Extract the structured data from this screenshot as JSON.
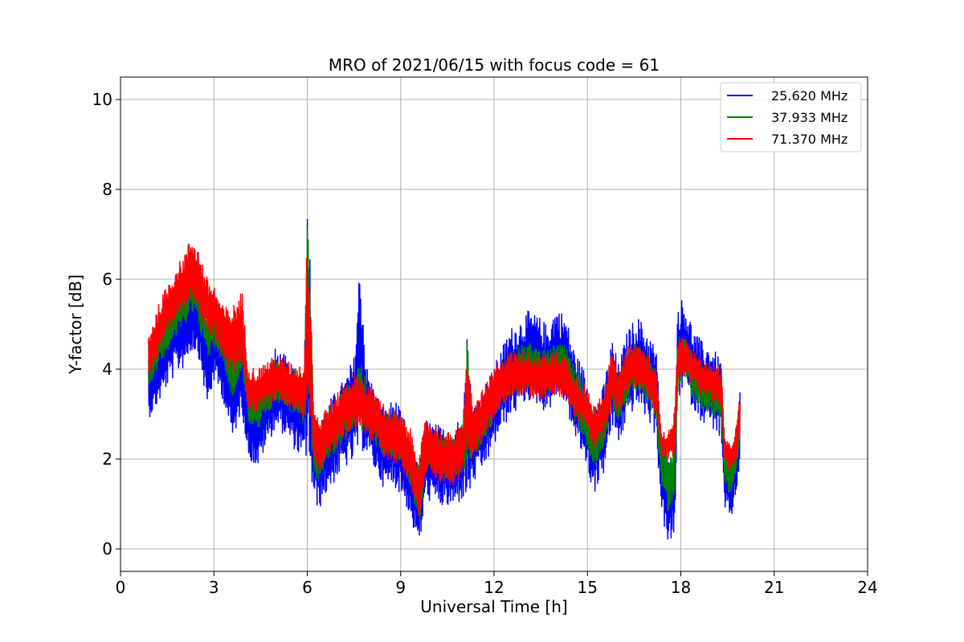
{
  "chart_data": {
    "type": "line",
    "title": "MRO of 2021/06/15 with focus code = 61",
    "xlabel": "Universal Time [h]",
    "ylabel": "Y-factor [dB]",
    "xlim": [
      0,
      24
    ],
    "ylim": [
      -0.5,
      10.5
    ],
    "xticks": [
      0,
      3,
      6,
      9,
      12,
      15,
      18,
      21,
      24
    ],
    "yticks": [
      0,
      2,
      4,
      6,
      8,
      10
    ],
    "grid": true,
    "legend_position": "top-right",
    "series": [
      {
        "name": "25.620 MHz",
        "color": "#0000ff",
        "x": [
          0.9,
          1.2,
          1.5,
          1.8,
          2.0,
          2.3,
          2.5,
          2.8,
          3.0,
          3.3,
          3.6,
          3.9,
          4.1,
          4.4,
          4.7,
          5.0,
          5.3,
          5.6,
          5.9,
          6.0,
          6.1,
          6.2,
          6.4,
          6.6,
          6.9,
          7.2,
          7.5,
          7.7,
          7.9,
          8.2,
          8.5,
          8.8,
          9.1,
          9.3,
          9.5,
          9.6,
          9.8,
          10.1,
          10.4,
          10.7,
          11.0,
          11.15,
          11.3,
          11.6,
          11.9,
          12.2,
          12.5,
          12.8,
          13.1,
          13.4,
          13.7,
          14.0,
          14.3,
          14.6,
          14.9,
          15.2,
          15.5,
          15.8,
          16.0,
          16.3,
          16.6,
          16.9,
          17.2,
          17.4,
          17.6,
          17.8,
          17.9,
          18.1,
          18.4,
          18.7,
          19.0,
          19.3,
          19.4,
          19.6,
          19.8,
          19.9
        ],
        "y": [
          3.5,
          4.0,
          4.5,
          4.9,
          5.0,
          5.4,
          5.2,
          4.0,
          4.6,
          4.2,
          3.2,
          4.0,
          2.9,
          2.6,
          3.2,
          3.6,
          3.4,
          3.1,
          2.9,
          5.0,
          4.0,
          2.0,
          1.8,
          2.2,
          2.5,
          2.8,
          3.1,
          4.4,
          3.1,
          2.6,
          2.2,
          2.4,
          2.0,
          1.6,
          1.2,
          1.0,
          2.0,
          1.9,
          1.8,
          1.8,
          2.1,
          3.0,
          2.3,
          2.6,
          3.0,
          3.5,
          3.9,
          4.1,
          4.3,
          4.2,
          4.0,
          4.4,
          4.2,
          3.4,
          3.0,
          2.2,
          2.6,
          3.7,
          3.2,
          3.9,
          4.2,
          3.9,
          3.5,
          1.6,
          1.0,
          1.4,
          4.4,
          4.6,
          4.0,
          3.7,
          3.6,
          3.3,
          1.6,
          1.4,
          2.0,
          2.8
        ],
        "spread": [
          0.6,
          0.8,
          0.9,
          1.0,
          1.0,
          1.0,
          0.9,
          0.9,
          0.9,
          0.9,
          0.8,
          0.9,
          0.9,
          0.8,
          0.9,
          0.9,
          0.9,
          0.9,
          1.0,
          3.0,
          2.5,
          1.0,
          0.9,
          1.0,
          1.0,
          1.0,
          1.2,
          2.2,
          1.0,
          0.9,
          0.9,
          1.0,
          0.9,
          0.9,
          1.0,
          1.0,
          0.9,
          0.9,
          0.9,
          0.9,
          1.0,
          2.0,
          0.9,
          0.9,
          0.9,
          0.9,
          1.0,
          1.0,
          1.0,
          1.0,
          1.0,
          1.0,
          1.0,
          1.0,
          1.0,
          1.0,
          1.0,
          1.0,
          0.9,
          1.0,
          1.0,
          1.0,
          1.0,
          0.9,
          1.0,
          1.2,
          1.1,
          1.0,
          0.9,
          0.9,
          0.9,
          0.9,
          0.8,
          0.8,
          0.8,
          0.8
        ]
      },
      {
        "name": "37.933 MHz",
        "color": "#008000",
        "x": [
          0.9,
          1.2,
          1.5,
          1.8,
          2.0,
          2.3,
          2.5,
          2.8,
          3.0,
          3.3,
          3.6,
          3.9,
          4.1,
          4.4,
          4.7,
          5.0,
          5.3,
          5.6,
          5.9,
          6.0,
          6.1,
          6.2,
          6.4,
          6.6,
          6.9,
          7.2,
          7.5,
          7.7,
          7.9,
          8.2,
          8.5,
          8.8,
          9.1,
          9.3,
          9.5,
          9.6,
          9.8,
          10.1,
          10.4,
          10.7,
          11.0,
          11.15,
          11.3,
          11.6,
          11.9,
          12.2,
          12.5,
          12.8,
          13.1,
          13.4,
          13.7,
          14.0,
          14.3,
          14.6,
          14.9,
          15.2,
          15.5,
          15.8,
          16.0,
          16.3,
          16.6,
          16.9,
          17.2,
          17.4,
          17.6,
          17.8,
          17.9,
          18.1,
          18.4,
          18.7,
          19.0,
          19.3,
          19.4,
          19.6,
          19.8,
          19.9
        ],
        "y": [
          4.0,
          4.5,
          4.9,
          5.3,
          5.5,
          5.9,
          5.6,
          4.7,
          5.0,
          4.6,
          3.8,
          4.5,
          3.3,
          3.1,
          3.5,
          3.8,
          3.6,
          3.5,
          3.3,
          5.5,
          4.5,
          2.3,
          2.1,
          2.5,
          2.7,
          3.0,
          3.2,
          3.5,
          3.1,
          2.8,
          2.5,
          2.6,
          2.3,
          1.9,
          1.4,
          1.2,
          2.2,
          2.1,
          2.0,
          2.0,
          2.2,
          3.3,
          2.5,
          2.8,
          3.2,
          3.6,
          3.9,
          4.0,
          4.1,
          4.0,
          3.9,
          4.1,
          4.0,
          3.4,
          3.1,
          2.4,
          2.8,
          3.7,
          3.3,
          3.9,
          4.1,
          3.8,
          3.4,
          1.9,
          1.4,
          1.8,
          4.1,
          4.3,
          3.8,
          3.6,
          3.5,
          3.3,
          1.9,
          1.7,
          2.2,
          2.9
        ],
        "spread": [
          0.4,
          0.5,
          0.5,
          0.6,
          0.6,
          0.6,
          0.6,
          0.5,
          0.5,
          0.5,
          0.5,
          0.5,
          0.5,
          0.5,
          0.5,
          0.5,
          0.5,
          0.5,
          0.6,
          2.5,
          1.8,
          0.7,
          0.6,
          0.6,
          0.6,
          0.6,
          0.6,
          0.8,
          0.6,
          0.5,
          0.5,
          0.6,
          0.5,
          0.5,
          0.6,
          0.7,
          0.5,
          0.5,
          0.5,
          0.5,
          0.6,
          1.5,
          0.5,
          0.5,
          0.5,
          0.5,
          0.5,
          0.5,
          0.5,
          0.5,
          0.5,
          0.5,
          0.5,
          0.6,
          0.6,
          0.6,
          0.6,
          0.6,
          0.5,
          0.6,
          0.5,
          0.5,
          0.6,
          0.6,
          0.6,
          0.6,
          0.6,
          0.5,
          0.5,
          0.5,
          0.5,
          0.5,
          0.5,
          0.5,
          0.5,
          0.5
        ]
      },
      {
        "name": "71.370 MHz",
        "color": "#ff0000",
        "x": [
          0.9,
          1.2,
          1.5,
          1.8,
          2.0,
          2.3,
          2.5,
          2.8,
          3.0,
          3.3,
          3.6,
          3.9,
          4.1,
          4.4,
          4.7,
          5.0,
          5.3,
          5.6,
          5.9,
          6.0,
          6.1,
          6.2,
          6.4,
          6.6,
          6.9,
          7.2,
          7.5,
          7.7,
          7.9,
          8.2,
          8.5,
          8.8,
          9.1,
          9.3,
          9.5,
          9.6,
          9.8,
          10.1,
          10.4,
          10.7,
          11.0,
          11.15,
          11.3,
          11.6,
          11.9,
          12.2,
          12.5,
          12.8,
          13.1,
          13.4,
          13.7,
          14.0,
          14.3,
          14.6,
          14.9,
          15.2,
          15.5,
          15.8,
          16.0,
          16.3,
          16.6,
          16.9,
          17.2,
          17.4,
          17.6,
          17.8,
          17.9,
          18.1,
          18.4,
          18.7,
          19.0,
          19.3,
          19.4,
          19.6,
          19.8,
          19.9
        ],
        "y": [
          4.3,
          4.8,
          5.3,
          5.7,
          5.9,
          6.3,
          6.0,
          5.3,
          5.3,
          4.8,
          4.6,
          5.0,
          3.6,
          3.5,
          3.7,
          3.8,
          3.7,
          3.6,
          3.5,
          5.0,
          4.3,
          2.6,
          2.3,
          2.6,
          2.8,
          3.1,
          3.3,
          3.3,
          3.1,
          2.9,
          2.6,
          2.5,
          2.3,
          2.1,
          1.6,
          1.3,
          2.3,
          2.2,
          2.0,
          2.0,
          2.2,
          3.4,
          2.6,
          2.9,
          3.3,
          3.7,
          3.9,
          3.9,
          3.9,
          3.8,
          3.8,
          3.9,
          3.8,
          3.4,
          3.2,
          2.7,
          3.0,
          3.8,
          3.4,
          4.0,
          4.1,
          3.9,
          3.5,
          2.3,
          2.3,
          2.6,
          4.2,
          4.3,
          4.0,
          3.8,
          3.7,
          3.6,
          2.2,
          2.0,
          2.4,
          3.0
        ],
        "spread": [
          0.5,
          0.6,
          0.6,
          0.6,
          0.6,
          0.7,
          0.7,
          0.7,
          0.6,
          0.6,
          0.8,
          0.8,
          0.5,
          0.5,
          0.5,
          0.5,
          0.5,
          0.5,
          0.6,
          2.3,
          1.4,
          0.7,
          0.6,
          0.6,
          0.6,
          0.6,
          0.6,
          0.6,
          0.6,
          0.6,
          0.6,
          0.6,
          0.6,
          0.6,
          0.7,
          0.8,
          0.6,
          0.6,
          0.6,
          0.6,
          0.6,
          1.2,
          0.6,
          0.6,
          0.6,
          0.6,
          0.5,
          0.5,
          0.5,
          0.5,
          0.5,
          0.5,
          0.5,
          0.5,
          0.5,
          0.5,
          0.6,
          0.6,
          0.5,
          0.5,
          0.5,
          0.5,
          0.5,
          0.3,
          0.3,
          0.5,
          0.5,
          0.4,
          0.4,
          0.4,
          0.4,
          0.5,
          0.3,
          0.3,
          0.4,
          0.5
        ]
      }
    ]
  }
}
